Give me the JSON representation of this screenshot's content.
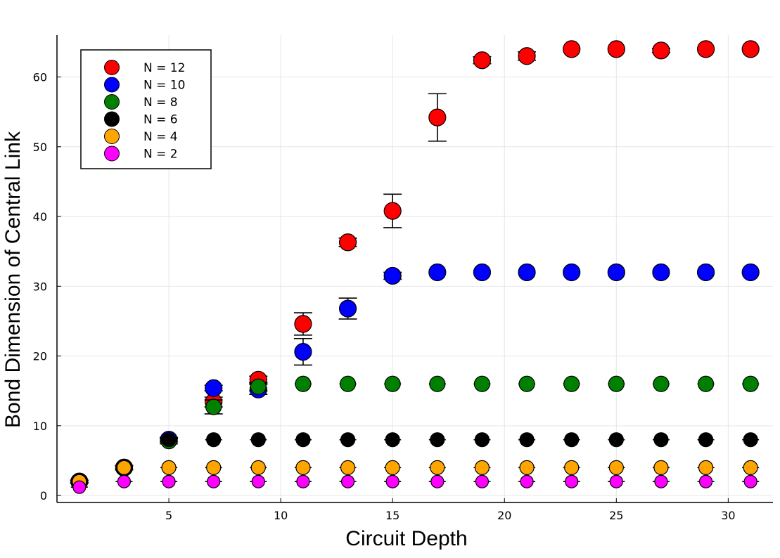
{
  "chart_data": {
    "type": "scatter",
    "title": "",
    "xlabel": "Circuit Depth",
    "ylabel": "Bond Dimension of Central Link",
    "xlim": [
      0,
      32
    ],
    "ylim": [
      -1,
      66
    ],
    "xticks": [
      5,
      10,
      15,
      20,
      25,
      30
    ],
    "yticks": [
      0,
      10,
      20,
      30,
      40,
      50,
      60
    ],
    "grid": true,
    "legend_position": "top-left",
    "series": [
      {
        "name": "N = 12",
        "color": "#ff0000",
        "marker_size": "large",
        "points": [
          {
            "x": 1,
            "y": 2.0,
            "err": 0.2
          },
          {
            "x": 3,
            "y": 4.0,
            "err": 0.3
          },
          {
            "x": 5,
            "y": 8.0,
            "err": 0.3
          },
          {
            "x": 7,
            "y": 13.4,
            "err": 0.7
          },
          {
            "x": 9,
            "y": 16.6,
            "err": 0.5
          },
          {
            "x": 11,
            "y": 24.6,
            "err": 1.6
          },
          {
            "x": 13,
            "y": 36.3,
            "err": 0.6
          },
          {
            "x": 15,
            "y": 40.8,
            "err": 2.4
          },
          {
            "x": 17,
            "y": 54.2,
            "err": 3.4
          },
          {
            "x": 19,
            "y": 62.4,
            "err": 0.5
          },
          {
            "x": 21,
            "y": 63.0,
            "err": 0.6
          },
          {
            "x": 23,
            "y": 64.0,
            "err": 0.0
          },
          {
            "x": 25,
            "y": 64.0,
            "err": 0.0
          },
          {
            "x": 27,
            "y": 63.8,
            "err": 0.3
          },
          {
            "x": 29,
            "y": 64.0,
            "err": 0.0
          },
          {
            "x": 31,
            "y": 64.0,
            "err": 0.0
          }
        ]
      },
      {
        "name": "N = 10",
        "color": "#0000ff",
        "marker_size": "large",
        "points": [
          {
            "x": 1,
            "y": 2.0,
            "err": 0.2
          },
          {
            "x": 3,
            "y": 4.0,
            "err": 0.3
          },
          {
            "x": 5,
            "y": 8.0,
            "err": 0.3
          },
          {
            "x": 7,
            "y": 15.4,
            "err": 0.4
          },
          {
            "x": 9,
            "y": 15.2,
            "err": 0.7
          },
          {
            "x": 11,
            "y": 20.6,
            "err": 1.9
          },
          {
            "x": 13,
            "y": 26.8,
            "err": 1.5
          },
          {
            "x": 15,
            "y": 31.5,
            "err": 0.5
          },
          {
            "x": 17,
            "y": 32.0,
            "err": 0.0
          },
          {
            "x": 19,
            "y": 32.0,
            "err": 0.0
          },
          {
            "x": 21,
            "y": 32.0,
            "err": 0.0
          },
          {
            "x": 23,
            "y": 32.0,
            "err": 0.0
          },
          {
            "x": 25,
            "y": 32.0,
            "err": 0.0
          },
          {
            "x": 27,
            "y": 32.0,
            "err": 0.0
          },
          {
            "x": 29,
            "y": 32.0,
            "err": 0.0
          },
          {
            "x": 31,
            "y": 32.0,
            "err": 0.0
          }
        ]
      },
      {
        "name": "N = 8",
        "color": "#008000",
        "marker_size": "medium",
        "points": [
          {
            "x": 1,
            "y": 2.0,
            "err": 0.2
          },
          {
            "x": 3,
            "y": 4.0,
            "err": 0.3
          },
          {
            "x": 5,
            "y": 7.8,
            "err": 0.4
          },
          {
            "x": 7,
            "y": 12.7,
            "err": 1.0
          },
          {
            "x": 9,
            "y": 15.6,
            "err": 0.6
          },
          {
            "x": 11,
            "y": 16.0,
            "err": 0.0
          },
          {
            "x": 13,
            "y": 16.0,
            "err": 0.0
          },
          {
            "x": 15,
            "y": 16.0,
            "err": 0.0
          },
          {
            "x": 17,
            "y": 16.0,
            "err": 0.0
          },
          {
            "x": 19,
            "y": 16.0,
            "err": 0.0
          },
          {
            "x": 21,
            "y": 16.0,
            "err": 0.0
          },
          {
            "x": 23,
            "y": 16.0,
            "err": 0.0
          },
          {
            "x": 25,
            "y": 16.0,
            "err": 0.0
          },
          {
            "x": 27,
            "y": 16.0,
            "err": 0.0
          },
          {
            "x": 29,
            "y": 16.0,
            "err": 0.0
          },
          {
            "x": 31,
            "y": 16.0,
            "err": 0.0
          }
        ]
      },
      {
        "name": "N = 6",
        "color": "#000000",
        "marker_size": "small",
        "points": [
          {
            "x": 1,
            "y": 2.0,
            "err": 0.2
          },
          {
            "x": 3,
            "y": 4.0,
            "err": 0.3
          },
          {
            "x": 5,
            "y": 8.0,
            "err": 0.0
          },
          {
            "x": 7,
            "y": 8.0,
            "err": 0.0
          },
          {
            "x": 9,
            "y": 8.0,
            "err": 0.0
          },
          {
            "x": 11,
            "y": 8.0,
            "err": 0.0
          },
          {
            "x": 13,
            "y": 8.0,
            "err": 0.0
          },
          {
            "x": 15,
            "y": 8.0,
            "err": 0.0
          },
          {
            "x": 17,
            "y": 8.0,
            "err": 0.0
          },
          {
            "x": 19,
            "y": 8.0,
            "err": 0.0
          },
          {
            "x": 21,
            "y": 8.0,
            "err": 0.0
          },
          {
            "x": 23,
            "y": 8.0,
            "err": 0.0
          },
          {
            "x": 25,
            "y": 8.0,
            "err": 0.0
          },
          {
            "x": 27,
            "y": 8.0,
            "err": 0.0
          },
          {
            "x": 29,
            "y": 8.0,
            "err": 0.0
          },
          {
            "x": 31,
            "y": 8.0,
            "err": 0.0
          }
        ]
      },
      {
        "name": "N = 4",
        "color": "#ffa500",
        "marker_size": "small",
        "points": [
          {
            "x": 1,
            "y": 2.0,
            "err": 0.2
          },
          {
            "x": 3,
            "y": 4.0,
            "err": 0.0
          },
          {
            "x": 5,
            "y": 4.0,
            "err": 0.0
          },
          {
            "x": 7,
            "y": 4.0,
            "err": 0.0
          },
          {
            "x": 9,
            "y": 4.0,
            "err": 0.0
          },
          {
            "x": 11,
            "y": 4.0,
            "err": 0.0
          },
          {
            "x": 13,
            "y": 4.0,
            "err": 0.0
          },
          {
            "x": 15,
            "y": 4.0,
            "err": 0.0
          },
          {
            "x": 17,
            "y": 4.0,
            "err": 0.0
          },
          {
            "x": 19,
            "y": 4.0,
            "err": 0.0
          },
          {
            "x": 21,
            "y": 4.0,
            "err": 0.0
          },
          {
            "x": 23,
            "y": 4.0,
            "err": 0.0
          },
          {
            "x": 25,
            "y": 4.0,
            "err": 0.0
          },
          {
            "x": 27,
            "y": 4.0,
            "err": 0.0
          },
          {
            "x": 29,
            "y": 4.0,
            "err": 0.0
          },
          {
            "x": 31,
            "y": 4.0,
            "err": 0.0
          }
        ]
      },
      {
        "name": "N = 2",
        "color": "#ff00ff",
        "marker_size": "xsmall",
        "points": [
          {
            "x": 1,
            "y": 1.2,
            "err": 0.0
          },
          {
            "x": 3,
            "y": 2.0,
            "err": 0.0
          },
          {
            "x": 5,
            "y": 2.0,
            "err": 0.0
          },
          {
            "x": 7,
            "y": 2.0,
            "err": 0.0
          },
          {
            "x": 9,
            "y": 2.0,
            "err": 0.0
          },
          {
            "x": 11,
            "y": 2.0,
            "err": 0.0
          },
          {
            "x": 13,
            "y": 2.0,
            "err": 0.0
          },
          {
            "x": 15,
            "y": 2.0,
            "err": 0.0
          },
          {
            "x": 17,
            "y": 2.0,
            "err": 0.0
          },
          {
            "x": 19,
            "y": 2.0,
            "err": 0.0
          },
          {
            "x": 21,
            "y": 2.0,
            "err": 0.0
          },
          {
            "x": 23,
            "y": 2.0,
            "err": 0.0
          },
          {
            "x": 25,
            "y": 2.0,
            "err": 0.0
          },
          {
            "x": 27,
            "y": 2.0,
            "err": 0.0
          },
          {
            "x": 29,
            "y": 2.0,
            "err": 0.0
          },
          {
            "x": 31,
            "y": 2.0,
            "err": 0.0
          }
        ]
      }
    ]
  }
}
